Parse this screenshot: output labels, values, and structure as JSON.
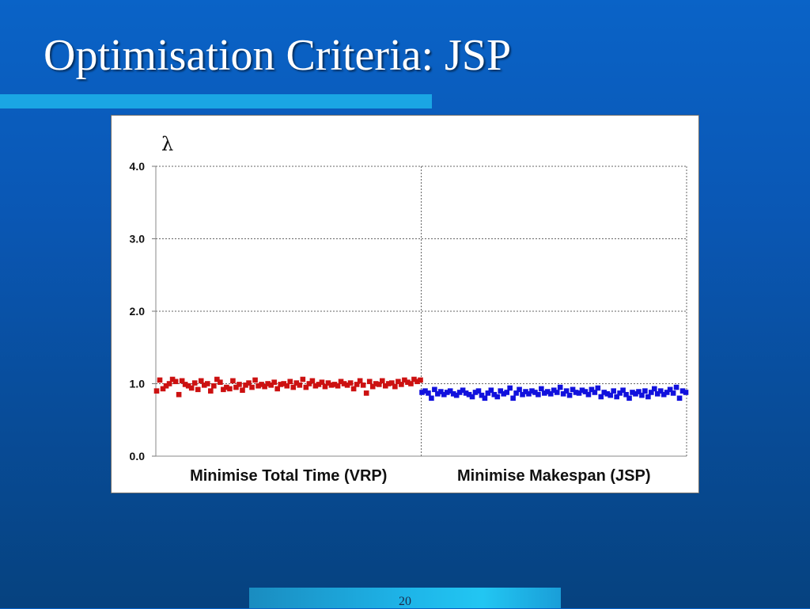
{
  "slide": {
    "title": "Optimisation Criteria: JSP",
    "page_number": "20"
  },
  "colors": {
    "series_vrp": "#cc1111",
    "series_jsp": "#1111dd",
    "title_underline": "#1aa6e4"
  },
  "chart_data": {
    "type": "scatter",
    "title": "",
    "ylabel": "λ",
    "ylim": [
      0,
      4
    ],
    "y_ticks": [
      "0.0",
      "1.0",
      "2.0",
      "3.0",
      "4.0"
    ],
    "grid": true,
    "categories": [
      "Minimise Total Time (VRP)",
      "Minimise Makespan (JSP)"
    ],
    "series": [
      {
        "category": "Minimise Total Time (VRP)",
        "marker": "square",
        "values": [
          0.9,
          1.05,
          0.93,
          0.97,
          1.0,
          1.06,
          1.03,
          0.85,
          1.04,
          0.99,
          0.97,
          0.94,
          1.01,
          0.92,
          1.04,
          0.98,
          1.0,
          0.9,
          0.97,
          1.06,
          1.02,
          0.92,
          0.95,
          0.93,
          1.04,
          0.95,
          0.99,
          0.91,
          0.98,
          1.01,
          0.95,
          1.05,
          0.97,
          0.99,
          0.96,
          1.0,
          0.98,
          1.02,
          0.93,
          0.99,
          1.0,
          0.97,
          1.03,
          0.95,
          1.01,
          0.98,
          1.06,
          0.95,
          1.0,
          1.04,
          0.97,
          0.99,
          1.02,
          0.96,
          1.01,
          0.98,
          0.99,
          0.97,
          1.03,
          1.0,
          0.98,
          1.01,
          0.93,
          0.99,
          1.04,
          0.98,
          0.87,
          1.03,
          0.96,
          1.0,
          0.99,
          1.04,
          0.97,
          1.0,
          1.01,
          0.96,
          1.03,
          0.99,
          1.05,
          1.02,
          1.0,
          1.06,
          1.03,
          1.05
        ]
      },
      {
        "category": "Minimise Makespan (JSP)",
        "marker": "square",
        "values": [
          0.88,
          0.9,
          0.87,
          0.8,
          0.92,
          0.86,
          0.89,
          0.85,
          0.88,
          0.9,
          0.86,
          0.84,
          0.88,
          0.91,
          0.87,
          0.85,
          0.82,
          0.88,
          0.9,
          0.84,
          0.8,
          0.87,
          0.91,
          0.85,
          0.82,
          0.9,
          0.86,
          0.88,
          0.94,
          0.8,
          0.87,
          0.92,
          0.85,
          0.89,
          0.86,
          0.9,
          0.88,
          0.85,
          0.93,
          0.87,
          0.89,
          0.86,
          0.91,
          0.88,
          0.95,
          0.86,
          0.9,
          0.84,
          0.92,
          0.88,
          0.87,
          0.91,
          0.89,
          0.85,
          0.92,
          0.88,
          0.94,
          0.82,
          0.88,
          0.86,
          0.84,
          0.9,
          0.82,
          0.87,
          0.91,
          0.85,
          0.8,
          0.88,
          0.86,
          0.89,
          0.84,
          0.9,
          0.82,
          0.88,
          0.93,
          0.86,
          0.9,
          0.85,
          0.88,
          0.92,
          0.87,
          0.95,
          0.8,
          0.9,
          0.88
        ]
      }
    ]
  }
}
